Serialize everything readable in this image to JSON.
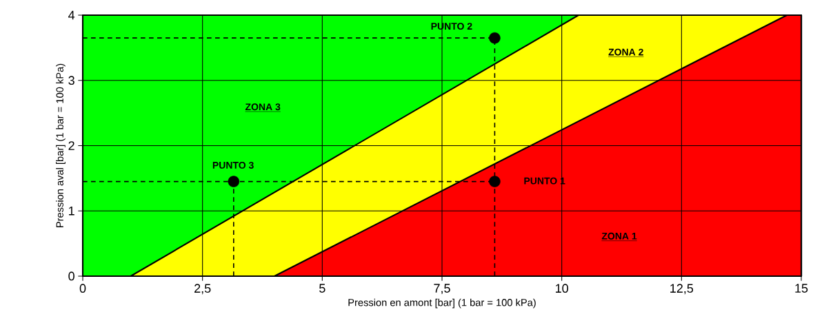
{
  "chart_data": {
    "type": "area",
    "xlabel": "Pression en amont [bar] (1 bar = 100 kPa)",
    "ylabel": "Pression aval [bar] (1 bar = 100 kPa)",
    "xlim": [
      0,
      15
    ],
    "ylim": [
      0,
      4
    ],
    "xticks": [
      0,
      {
        "value": 2.5,
        "label": "2,5"
      },
      5,
      {
        "value": 7.5,
        "label": "7,5"
      },
      10,
      {
        "value": 12.5,
        "label": "12,5"
      },
      15
    ],
    "yticks": [
      0,
      1,
      2,
      3,
      4
    ],
    "grid": true,
    "series": [
      {
        "color": "#00ff00",
        "x": [
          0,
          15
        ],
        "values": [
          4,
          4
        ]
      },
      {
        "color": "#ffff00",
        "x": [
          1,
          10.35,
          15
        ],
        "values": [
          0,
          4,
          4
        ]
      },
      {
        "color": "#ff0000",
        "x": [
          4,
          14.7,
          15
        ],
        "values": [
          0,
          4,
          4
        ]
      },
      {
        "type": "line",
        "color": "#000000",
        "line_style": "dashed",
        "marker": "none",
        "x": [
          0,
          8.6
        ],
        "values": [
          1.45,
          1.45
        ]
      },
      {
        "type": "line",
        "color": "#000000",
        "line_style": "dashed",
        "marker": "none",
        "x": [
          0,
          8.6
        ],
        "values": [
          3.65,
          3.65
        ]
      },
      {
        "type": "line",
        "color": "#000000",
        "line_style": "dashed",
        "marker": "none",
        "x": [
          3.15,
          3.15
        ],
        "values": [
          0,
          1.45
        ]
      },
      {
        "type": "line",
        "color": "#000000",
        "line_style": "dashed",
        "marker": "none",
        "x": [
          8.6,
          8.6
        ],
        "values": [
          0,
          3.65
        ]
      },
      {
        "type": "scatter",
        "color": "#000000",
        "marker": "circle",
        "x": [
          8.6,
          8.6,
          3.15
        ],
        "values": [
          1.45,
          3.65,
          1.45
        ]
      }
    ],
    "annotations": [
      "ZONA 1",
      "ZONA 2",
      "ZONA 3",
      "PUNTO 1",
      "PUNTO 2",
      "PUNTO 3"
    ]
  }
}
